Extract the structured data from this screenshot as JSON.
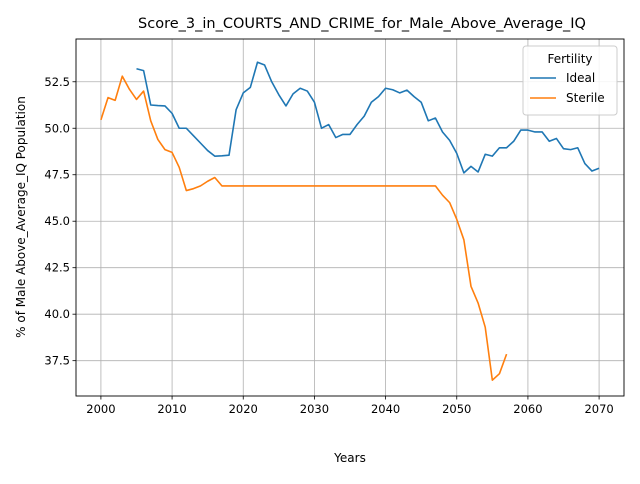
{
  "chart_data": {
    "type": "line",
    "title": "Score_3_in_COURTS_AND_CRIME_for_Male_Above_Average_IQ",
    "xlabel": "Years",
    "ylabel": "% of Male Above_Average_IQ Population",
    "xlim": [
      1996.5,
      2073.5
    ],
    "ylim": [
      35.6,
      54.8
    ],
    "xticks": [
      2000,
      2010,
      2020,
      2030,
      2040,
      2050,
      2060,
      2070
    ],
    "yticks": [
      37.5,
      40.0,
      42.5,
      45.0,
      47.5,
      50.0,
      52.5
    ],
    "grid": true,
    "legend": {
      "title": "Fertility",
      "position": "top-right"
    },
    "series": [
      {
        "name": "Ideal",
        "color": "#1f77b4",
        "x": [
          2005,
          2006,
          2007,
          2008,
          2009,
          2010,
          2011,
          2012,
          2013,
          2014,
          2015,
          2016,
          2017,
          2018,
          2019,
          2020,
          2021,
          2022,
          2023,
          2024,
          2025,
          2026,
          2027,
          2028,
          2029,
          2030,
          2031,
          2032,
          2033,
          2034,
          2035,
          2036,
          2037,
          2038,
          2039,
          2040,
          2041,
          2042,
          2043,
          2044,
          2045,
          2046,
          2047,
          2048,
          2049,
          2050,
          2051,
          2052,
          2053,
          2054,
          2055,
          2056,
          2057,
          2058,
          2059,
          2060,
          2061,
          2062,
          2063,
          2064,
          2065,
          2066,
          2067,
          2068,
          2069,
          2070
        ],
        "y": [
          53.2,
          53.1,
          51.25,
          51.22,
          51.2,
          50.8,
          50.0,
          50.0,
          49.6,
          49.2,
          48.8,
          48.5,
          48.52,
          48.55,
          51.0,
          51.9,
          52.2,
          53.55,
          53.4,
          52.5,
          51.8,
          51.2,
          51.85,
          52.15,
          52.0,
          51.4,
          50.0,
          50.2,
          49.5,
          49.67,
          49.67,
          50.2,
          50.65,
          51.4,
          51.7,
          52.15,
          52.07,
          51.9,
          52.05,
          51.7,
          51.4,
          50.4,
          50.55,
          49.8,
          49.35,
          48.65,
          47.6,
          47.95,
          47.65,
          48.6,
          48.5,
          48.95,
          48.95,
          49.3,
          49.9,
          49.9,
          49.8,
          49.8,
          49.3,
          49.45,
          48.9,
          48.85,
          48.95,
          48.1,
          47.7,
          47.85
        ]
      },
      {
        "name": "Sterile",
        "color": "#ff7f0e",
        "x": [
          2000,
          2001,
          2002,
          2003,
          2004,
          2005,
          2006,
          2007,
          2008,
          2009,
          2010,
          2011,
          2012,
          2013,
          2014,
          2015,
          2016,
          2017,
          2018,
          2019,
          2020,
          2021,
          2022,
          2023,
          2024,
          2025,
          2026,
          2027,
          2028,
          2029,
          2030,
          2031,
          2032,
          2033,
          2034,
          2035,
          2036,
          2037,
          2038,
          2039,
          2040,
          2041,
          2042,
          2043,
          2044,
          2045,
          2046,
          2047,
          2048,
          2049,
          2050,
          2051,
          2052,
          2053,
          2054,
          2055,
          2056,
          2057
        ],
        "y": [
          50.45,
          51.65,
          51.5,
          52.8,
          52.1,
          51.55,
          52.0,
          50.4,
          49.4,
          48.85,
          48.7,
          47.9,
          46.65,
          46.75,
          46.9,
          47.15,
          47.35,
          46.9,
          46.9,
          46.9,
          46.9,
          46.9,
          46.9,
          46.9,
          46.9,
          46.9,
          46.9,
          46.9,
          46.9,
          46.9,
          46.9,
          46.9,
          46.9,
          46.9,
          46.9,
          46.9,
          46.9,
          46.9,
          46.9,
          46.9,
          46.9,
          46.9,
          46.9,
          46.9,
          46.9,
          46.9,
          46.9,
          46.9,
          46.4,
          46.0,
          45.1,
          44.0,
          41.5,
          40.6,
          39.3,
          36.45,
          36.8,
          37.85
        ]
      }
    ]
  }
}
